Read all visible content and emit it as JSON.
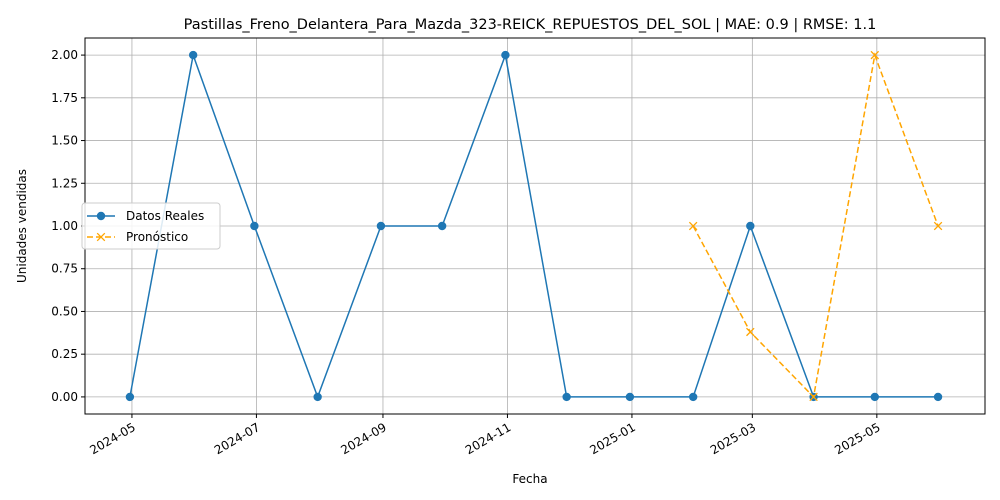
{
  "chart_data": {
    "type": "line",
    "title": "Pastillas_Freno_Delantera_Para_Mazda_323-REICK_REPUESTOS_DEL_SOL | MAE: 0.9 | RMSE: 1.1",
    "xlabel": "Fecha",
    "ylabel": "Unidades vendidas",
    "ylim": [
      -0.1,
      2.1
    ],
    "xlim": [
      "2024-04-08",
      "2025-06-23"
    ],
    "grid": true,
    "legend_position": "center-left",
    "x_ticks": [
      "2024-05",
      "2024-07",
      "2024-09",
      "2024-11",
      "2025-01",
      "2025-03",
      "2025-05"
    ],
    "x_tick_dates": [
      "2024-05-01",
      "2024-07-01",
      "2024-09-01",
      "2024-11-01",
      "2025-01-01",
      "2025-03-01",
      "2025-05-01"
    ],
    "y_ticks": [
      "0.00",
      "0.25",
      "0.50",
      "0.75",
      "1.00",
      "1.25",
      "1.50",
      "1.75",
      "2.00"
    ],
    "y_tick_values": [
      0,
      0.25,
      0.5,
      0.75,
      1.0,
      1.25,
      1.5,
      1.75,
      2.0
    ],
    "series": [
      {
        "name": "Datos Reales",
        "color": "#1f77b4",
        "line_style": "solid",
        "marker": "circle",
        "x": [
          "2024-04-30",
          "2024-05-31",
          "2024-06-30",
          "2024-07-31",
          "2024-08-31",
          "2024-09-30",
          "2024-10-31",
          "2024-11-30",
          "2024-12-31",
          "2025-01-31",
          "2025-02-28",
          "2025-03-31",
          "2025-04-30",
          "2025-05-31"
        ],
        "values": [
          0,
          2,
          1,
          0,
          1,
          1,
          2,
          0,
          0,
          0,
          1,
          0,
          0,
          0
        ]
      },
      {
        "name": "Pronóstico",
        "color": "#ffa500",
        "line_style": "dashed",
        "marker": "x",
        "x": [
          "2025-01-31",
          "2025-02-28",
          "2025-03-31",
          "2025-04-30",
          "2025-05-31"
        ],
        "values": [
          1.0,
          0.38,
          0.0,
          2.0,
          1.0
        ]
      }
    ]
  }
}
